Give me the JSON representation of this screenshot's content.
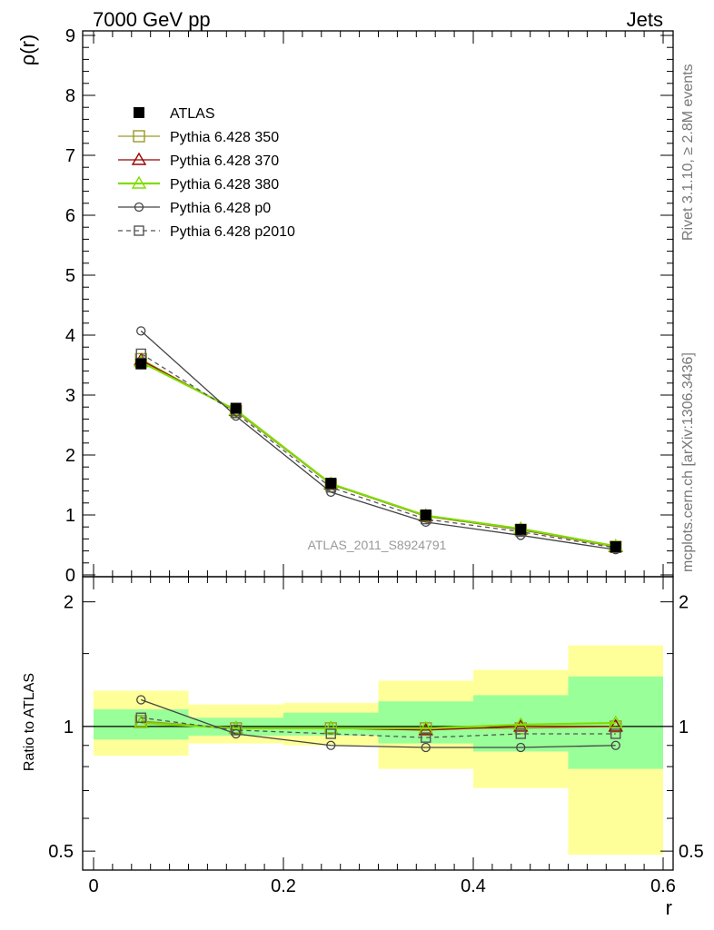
{
  "header": {
    "left": "7000 GeV pp",
    "right": "Jets"
  },
  "side_labels": {
    "rivet": "Rivet 3.1.10, ≥ 2.8M events",
    "mcplots": "mcplots.cern.ch [arXiv:1306.3436]"
  },
  "watermark": "ATLAS_2011_S8924791",
  "chart_data": [
    {
      "type": "line",
      "panel": "main",
      "xlabel": "",
      "ylabel": "ρ(r)",
      "xlim": [
        0,
        0.6
      ],
      "ylim": [
        0,
        9
      ],
      "yticks": [
        0,
        1,
        2,
        3,
        4,
        5,
        6,
        7,
        8,
        9
      ],
      "ytick_labels": [
        "0",
        "1",
        "2",
        "3",
        "4",
        "5",
        "6",
        "7",
        "8",
        "9"
      ],
      "legend_position": "top-left",
      "x": [
        0.05,
        0.15,
        0.25,
        0.35,
        0.45,
        0.55
      ],
      "series": [
        {
          "name": "ATLAS",
          "color": "#000000",
          "marker": "filled-square",
          "values": [
            3.52,
            2.78,
            1.53,
            1.0,
            0.76,
            0.47
          ]
        },
        {
          "name": "Pythia 6.428 350",
          "color": "#9a9a2a",
          "marker": "open-square",
          "values": [
            3.6,
            2.73,
            1.51,
            0.98,
            0.75,
            0.47
          ]
        },
        {
          "name": "Pythia 6.428 370",
          "color": "#990000",
          "marker": "open-triangle",
          "values": [
            3.58,
            2.74,
            1.51,
            0.98,
            0.76,
            0.47
          ]
        },
        {
          "name": "Pythia 6.428 380",
          "color": "#7fdd00",
          "marker": "open-triangle",
          "values": [
            3.55,
            2.75,
            1.52,
            0.99,
            0.77,
            0.48
          ]
        },
        {
          "name": "Pythia 6.428 p0",
          "color": "#444444",
          "marker": "open-circle",
          "values": [
            4.07,
            2.65,
            1.38,
            0.88,
            0.66,
            0.42
          ]
        },
        {
          "name": "Pythia 6.428 p2010",
          "color": "#555555",
          "marker": "open-square-dashed",
          "values": [
            3.69,
            2.7,
            1.46,
            0.93,
            0.72,
            0.45
          ]
        }
      ]
    },
    {
      "type": "line",
      "panel": "ratio",
      "xlabel": "r",
      "ylabel": "Ratio to ATLAS",
      "xlim": [
        0,
        0.6
      ],
      "ylim": [
        0.45,
        2.3
      ],
      "xticks": [
        0,
        0.2,
        0.4,
        0.6
      ],
      "xtick_labels": [
        "0",
        "0.2",
        "0.4",
        "0.6"
      ],
      "yticks": [
        0.5,
        1,
        2
      ],
      "ytick_labels": [
        "0.5",
        "1",
        "2"
      ],
      "bands": [
        {
          "x_low": 0.0,
          "x_high": 0.1,
          "yellow": [
            0.85,
            1.22
          ],
          "green": [
            0.93,
            1.1
          ]
        },
        {
          "x_low": 0.1,
          "x_high": 0.2,
          "yellow": [
            0.91,
            1.13
          ],
          "green": [
            0.95,
            1.05
          ]
        },
        {
          "x_low": 0.2,
          "x_high": 0.3,
          "yellow": [
            0.9,
            1.14
          ],
          "green": [
            0.95,
            1.08
          ]
        },
        {
          "x_low": 0.3,
          "x_high": 0.4,
          "yellow": [
            0.79,
            1.29
          ],
          "green": [
            0.91,
            1.15
          ]
        },
        {
          "x_low": 0.4,
          "x_high": 0.5,
          "yellow": [
            0.71,
            1.37
          ],
          "green": [
            0.87,
            1.19
          ]
        },
        {
          "x_low": 0.5,
          "x_high": 0.6,
          "yellow": [
            0.49,
            1.57
          ],
          "green": [
            0.79,
            1.32
          ]
        }
      ],
      "x": [
        0.05,
        0.15,
        0.25,
        0.35,
        0.45,
        0.55
      ],
      "series": [
        {
          "name": "Pythia 6.428 350",
          "color": "#9a9a2a",
          "marker": "open-square",
          "values": [
            1.03,
            0.99,
            0.99,
            0.99,
            0.99,
            1.0
          ]
        },
        {
          "name": "Pythia 6.428 370",
          "color": "#990000",
          "marker": "open-triangle",
          "values": [
            1.02,
            0.99,
            0.99,
            0.98,
            1.0,
            1.0
          ]
        },
        {
          "name": "Pythia 6.428 380",
          "color": "#7fdd00",
          "marker": "open-triangle",
          "values": [
            1.02,
            0.99,
            0.99,
            0.99,
            1.01,
            1.02
          ]
        },
        {
          "name": "Pythia 6.428 p0",
          "color": "#444444",
          "marker": "open-circle",
          "values": [
            1.16,
            0.96,
            0.9,
            0.89,
            0.89,
            0.9
          ]
        },
        {
          "name": "Pythia 6.428 p2010",
          "color": "#555555",
          "marker": "open-square-dashed",
          "values": [
            1.05,
            0.98,
            0.96,
            0.94,
            0.96,
            0.96
          ]
        }
      ]
    }
  ]
}
